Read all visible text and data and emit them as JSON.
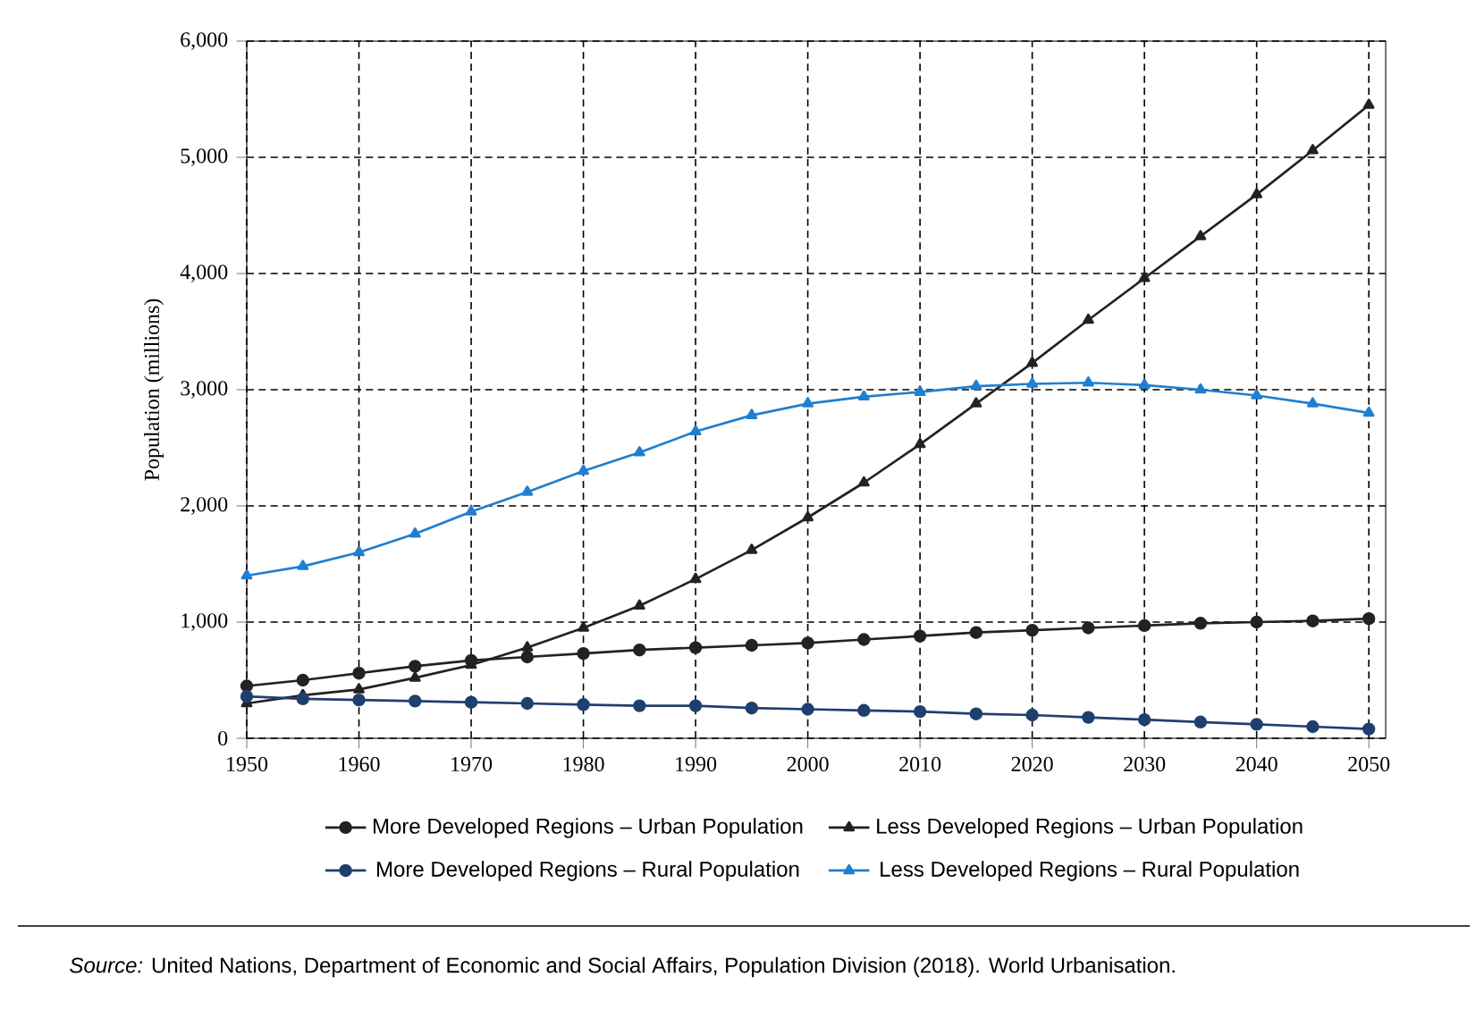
{
  "chart_data": {
    "type": "line",
    "ylabel": "Population (millions)",
    "x": [
      1950,
      1955,
      1960,
      1965,
      1970,
      1975,
      1980,
      1985,
      1990,
      1995,
      2000,
      2005,
      2010,
      2015,
      2020,
      2025,
      2030,
      2035,
      2040,
      2045,
      2050
    ],
    "series": [
      {
        "name": "More Developed Regions – Urban Population",
        "color": "#222222",
        "marker": "circle",
        "values": [
          450,
          500,
          560,
          620,
          670,
          700,
          730,
          760,
          780,
          800,
          820,
          850,
          880,
          910,
          930,
          950,
          970,
          990,
          1000,
          1010,
          1030
        ]
      },
      {
        "name": "Less Developed Regions – Urban Population",
        "color": "#222222",
        "marker": "triangle",
        "values": [
          300,
          370,
          420,
          520,
          630,
          780,
          950,
          1140,
          1370,
          1620,
          1900,
          2200,
          2530,
          2880,
          3230,
          3600,
          3960,
          4320,
          4680,
          5060,
          5450
        ]
      },
      {
        "name": "More Developed Regions – Rural Population",
        "color": "#1f3f6f",
        "marker": "circle",
        "values": [
          360,
          340,
          330,
          320,
          310,
          300,
          290,
          280,
          280,
          260,
          250,
          240,
          230,
          210,
          200,
          180,
          160,
          140,
          120,
          100,
          80
        ]
      },
      {
        "name": "Less Developed Regions – Rural Population",
        "color": "#1f7fd0",
        "marker": "triangle",
        "values": [
          1400,
          1480,
          1600,
          1760,
          1950,
          2120,
          2300,
          2460,
          2640,
          2780,
          2880,
          2940,
          2980,
          3030,
          3050,
          3060,
          3040,
          3000,
          2950,
          2880,
          2800
        ]
      }
    ],
    "xlim": [
      1950,
      2051.5
    ],
    "xticks": [
      1950,
      1960,
      1970,
      1980,
      1990,
      2000,
      2010,
      2020,
      2030,
      2040,
      2050
    ],
    "ylim": [
      0,
      6000
    ],
    "yticks": [
      {
        "value": 0,
        "label": "0"
      },
      {
        "value": 1000,
        "label": "1,000"
      },
      {
        "value": 2000,
        "label": "2,000"
      },
      {
        "value": 3000,
        "label": "3,000"
      },
      {
        "value": 4000,
        "label": "4,000"
      },
      {
        "value": 5000,
        "label": "5,000"
      },
      {
        "value": 6000,
        "label": "6,000"
      }
    ],
    "grid": true,
    "legend": "bottom",
    "line_style": "solid",
    "annotations": [
      "*Source:* United Nations, Department of Economic and Social Affairs, Population Division (2018). World Urbanisation."
    ]
  }
}
